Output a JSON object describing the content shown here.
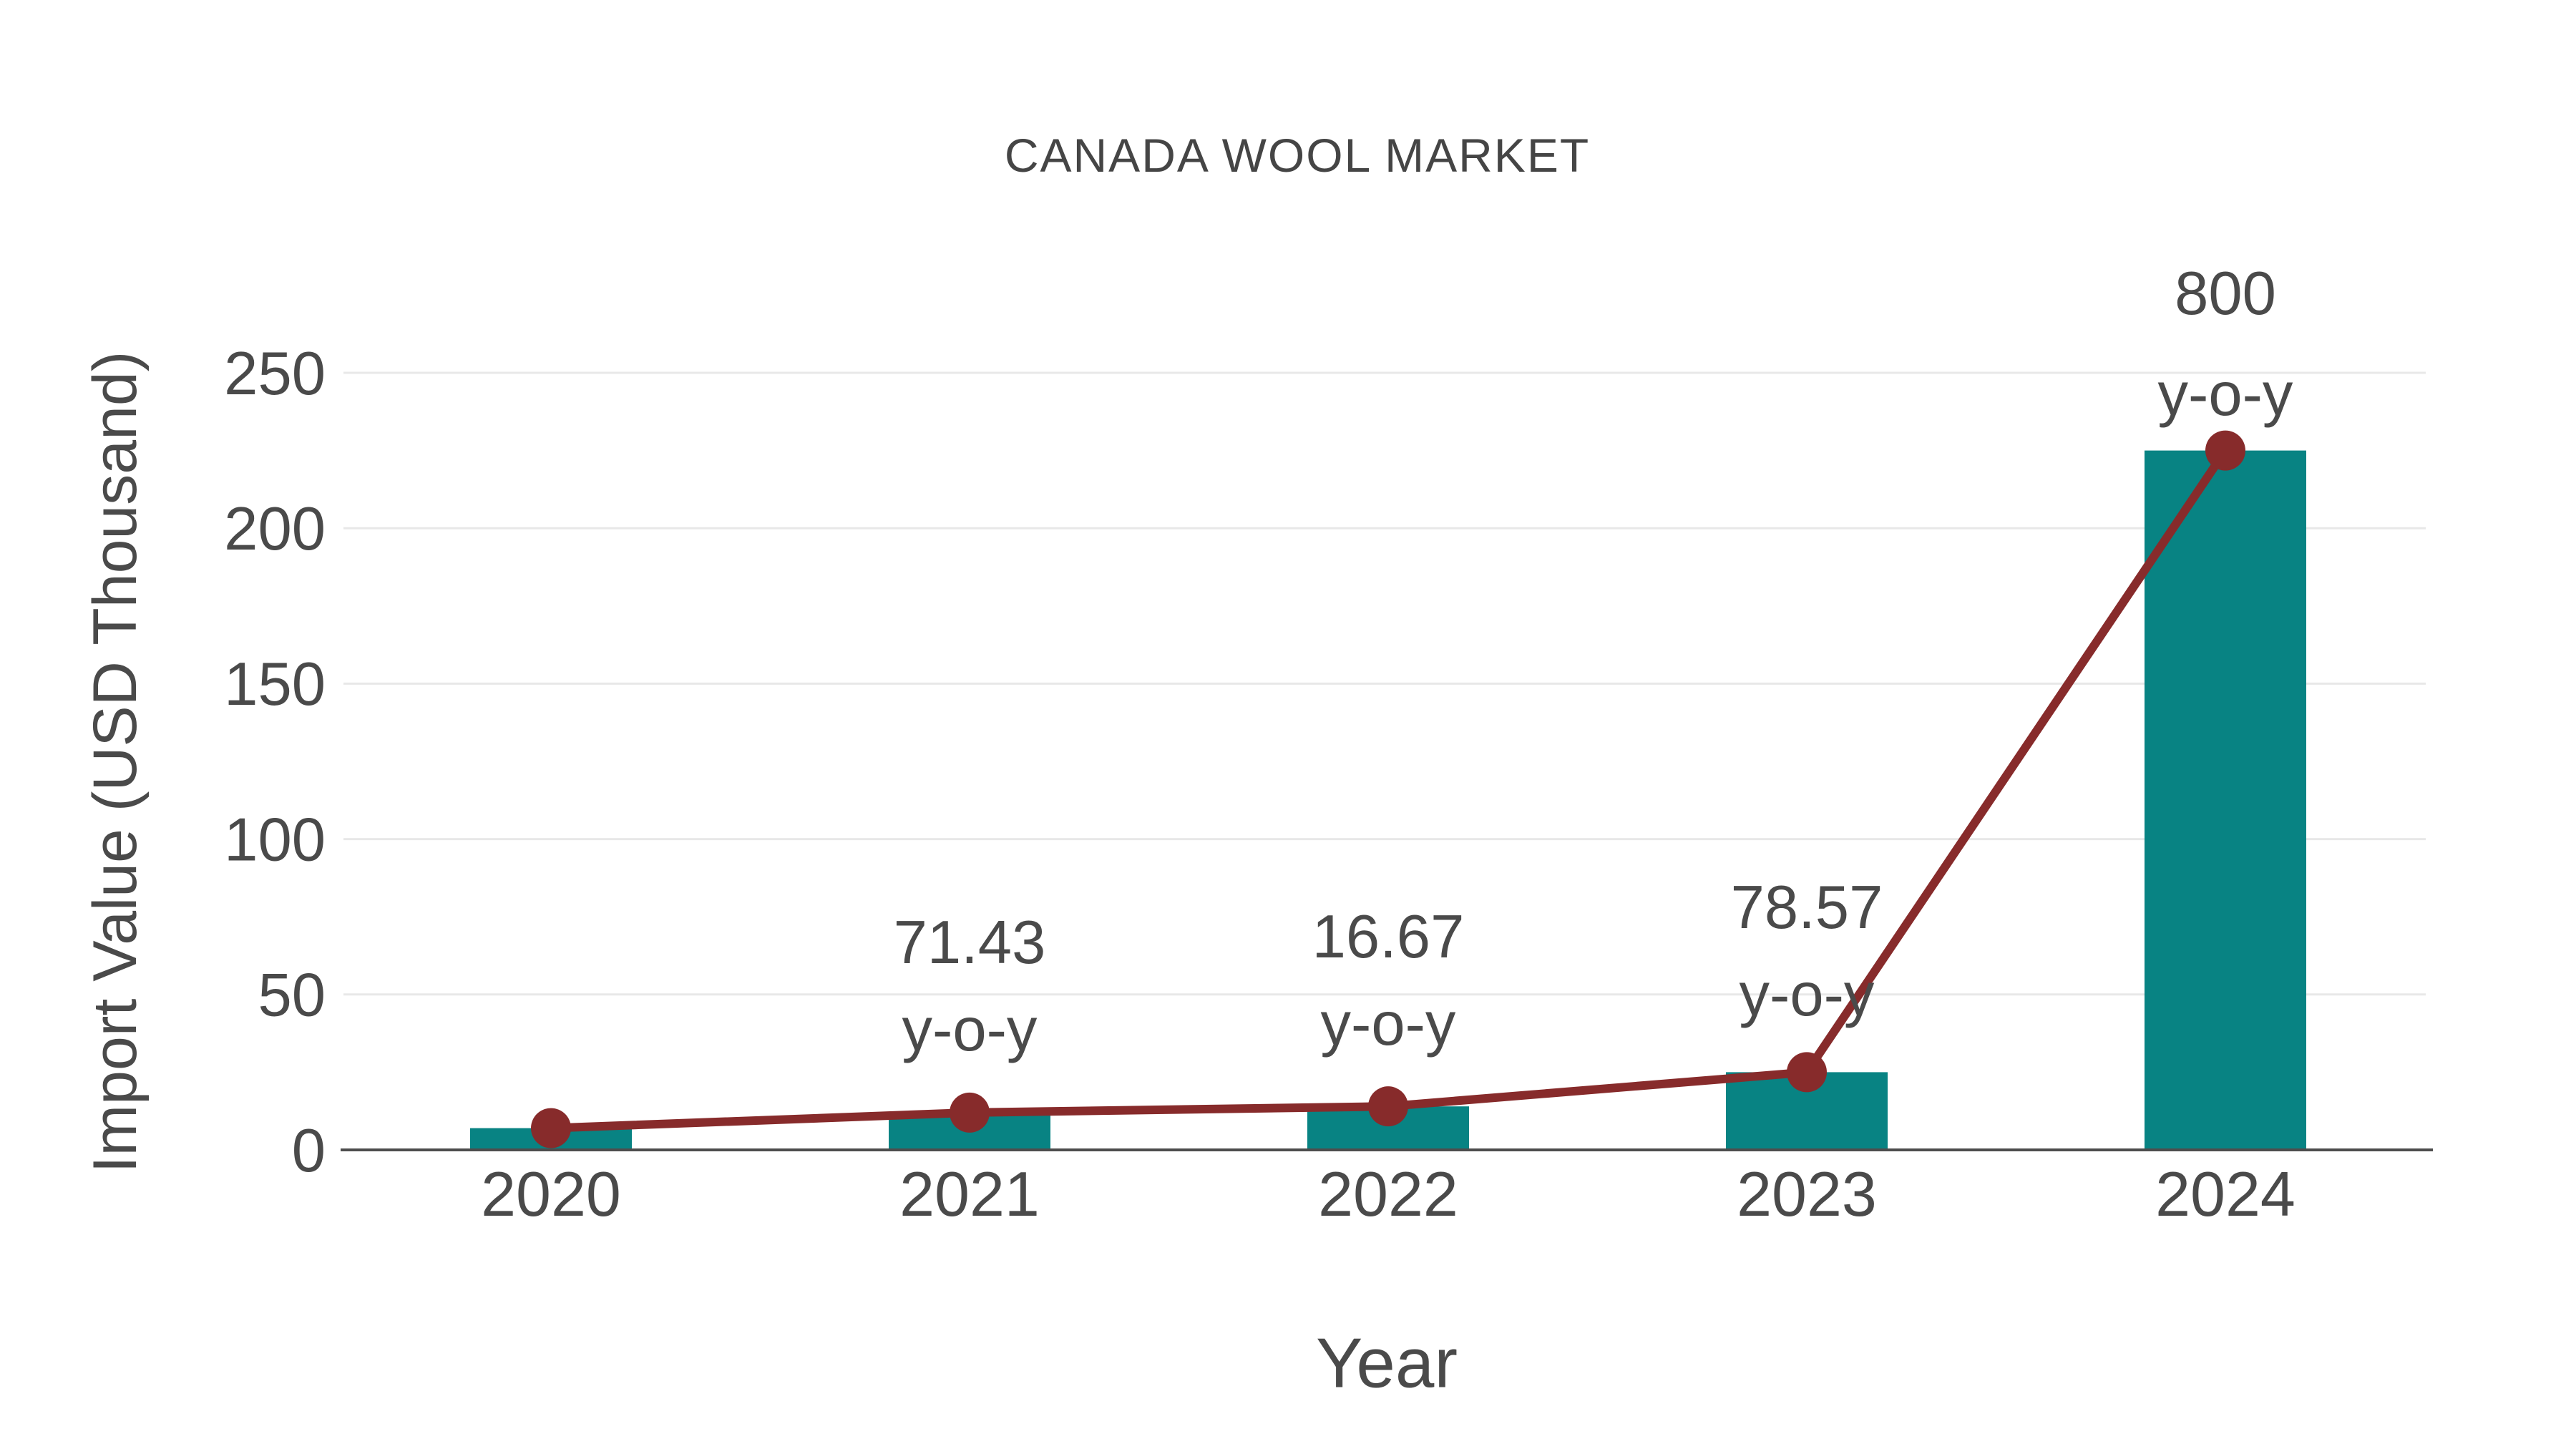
{
  "chart": {
    "title": "CANADA WOOL MARKET",
    "x_axis_label": "Year",
    "y_axis_label": "Import Value (USD Thousand)",
    "colors": {
      "bar": "#088383",
      "line": "#872B2B",
      "marker": "#872B2B",
      "grid": "#E8E8E8",
      "axis_line": "#4D4D4D",
      "text": "#4A4A4A",
      "title_text": "#454545",
      "background": "#FFFFFF"
    }
  },
  "chart_data": {
    "type": "bar",
    "subtype": "bar-with-line-overlay",
    "title": "CANADA WOOL MARKET",
    "xlabel": "Year",
    "ylabel": "Import Value (USD Thousand)",
    "categories": [
      "2020",
      "2021",
      "2022",
      "2023",
      "2024"
    ],
    "series": [
      {
        "name": "Import Value bars",
        "type": "bar",
        "values": [
          7,
          12,
          14,
          25,
          225
        ]
      },
      {
        "name": "Import Value trend line",
        "type": "line",
        "values": [
          7,
          12,
          14,
          25,
          225
        ]
      }
    ],
    "annotations": [
      {
        "category": "2021",
        "line1": "71.43",
        "line2": "y-o-y"
      },
      {
        "category": "2022",
        "line1": "16.67",
        "line2": "y-o-y"
      },
      {
        "category": "2023",
        "line1": "78.57",
        "line2": "y-o-y"
      },
      {
        "category": "2024",
        "line1": "800",
        "line2": "y-o-y"
      }
    ],
    "ylim": [
      0,
      250
    ],
    "yticks": [
      0,
      50,
      100,
      150,
      200,
      250
    ],
    "grid": true,
    "legend": false
  }
}
